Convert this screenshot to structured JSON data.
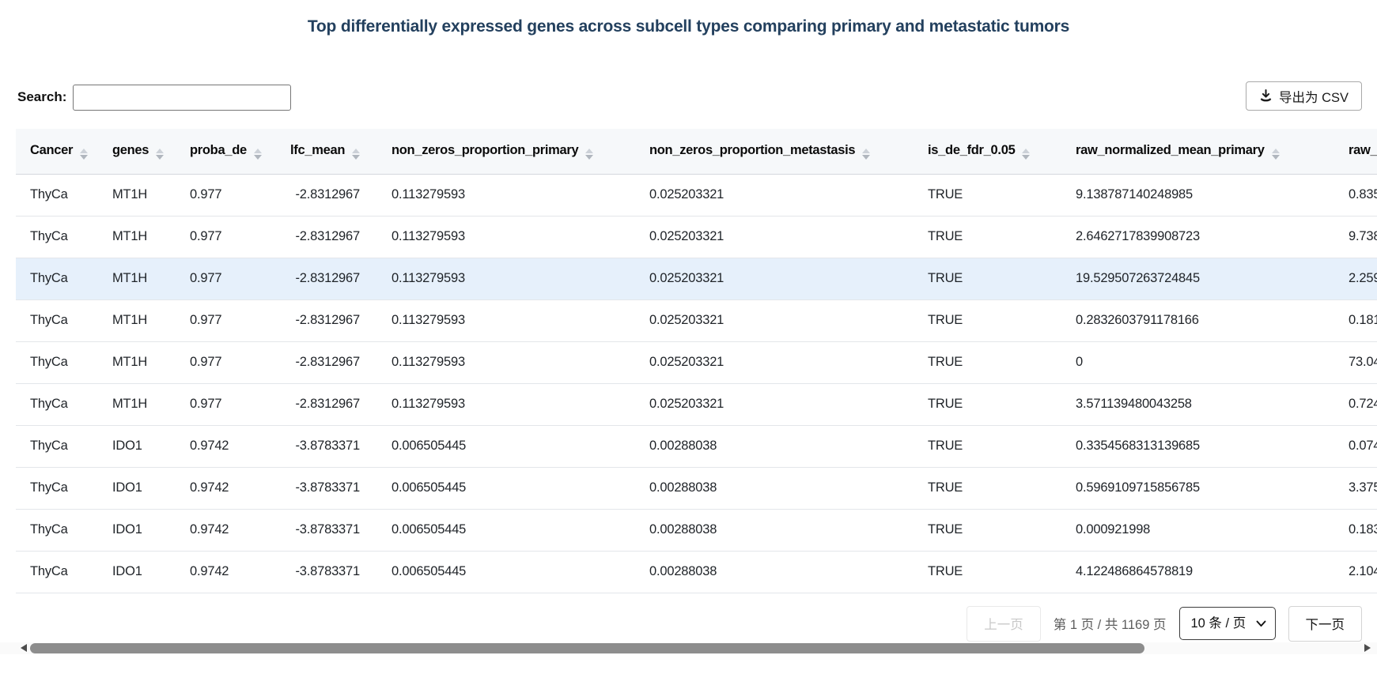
{
  "title": "Top differentially expressed genes across subcell types comparing primary and metastatic tumors",
  "colors": {
    "title_text": "#23405e",
    "header_bg": "#f6f8fa",
    "highlight_row_bg": "#e6f0fb",
    "scrollbar_thumb": "#8d8d8d"
  },
  "toolbar": {
    "search_label": "Search:",
    "search_value": "",
    "export_label": "导出为 CSV",
    "export_icon": "download-icon"
  },
  "table": {
    "columns": [
      {
        "label": "Cancer"
      },
      {
        "label": "genes"
      },
      {
        "label": "proba_de"
      },
      {
        "label": "lfc_mean"
      },
      {
        "label": "non_zeros_proportion_primary"
      },
      {
        "label": "non_zeros_proportion_metastasis"
      },
      {
        "label": "is_de_fdr_0.05"
      },
      {
        "label": "raw_normalized_mean_primary"
      },
      {
        "label": "raw_"
      }
    ],
    "highlighted_row_index": 2,
    "rows": [
      [
        "ThyCa",
        "MT1H",
        "0.977",
        "-2.8312967",
        "0.113279593",
        "0.025203321",
        "TRUE",
        "9.138787140248985",
        "0.835"
      ],
      [
        "ThyCa",
        "MT1H",
        "0.977",
        "-2.8312967",
        "0.113279593",
        "0.025203321",
        "TRUE",
        "2.6462717839908723",
        "9.738"
      ],
      [
        "ThyCa",
        "MT1H",
        "0.977",
        "-2.8312967",
        "0.113279593",
        "0.025203321",
        "TRUE",
        "19.529507263724845",
        "2.259"
      ],
      [
        "ThyCa",
        "MT1H",
        "0.977",
        "-2.8312967",
        "0.113279593",
        "0.025203321",
        "TRUE",
        "0.2832603791178166",
        "0.181"
      ],
      [
        "ThyCa",
        "MT1H",
        "0.977",
        "-2.8312967",
        "0.113279593",
        "0.025203321",
        "TRUE",
        "0",
        "73.04"
      ],
      [
        "ThyCa",
        "MT1H",
        "0.977",
        "-2.8312967",
        "0.113279593",
        "0.025203321",
        "TRUE",
        "3.571139480043258",
        "0.724"
      ],
      [
        "ThyCa",
        "IDO1",
        "0.9742",
        "-3.8783371",
        "0.006505445",
        "0.00288038",
        "TRUE",
        "0.3354568313139685",
        "0.074"
      ],
      [
        "ThyCa",
        "IDO1",
        "0.9742",
        "-3.8783371",
        "0.006505445",
        "0.00288038",
        "TRUE",
        "0.5969109715856785",
        "3.375"
      ],
      [
        "ThyCa",
        "IDO1",
        "0.9742",
        "-3.8783371",
        "0.006505445",
        "0.00288038",
        "TRUE",
        "0.000921998",
        "0.183"
      ],
      [
        "ThyCa",
        "IDO1",
        "0.9742",
        "-3.8783371",
        "0.006505445",
        "0.00288038",
        "TRUE",
        "4.122486864578819",
        "2.104"
      ]
    ]
  },
  "pagination": {
    "prev_label": "上一页",
    "info": "第 1 页 / 共 1169 页",
    "page_size_label": "10 条 / 页",
    "next_label": "下一页"
  }
}
